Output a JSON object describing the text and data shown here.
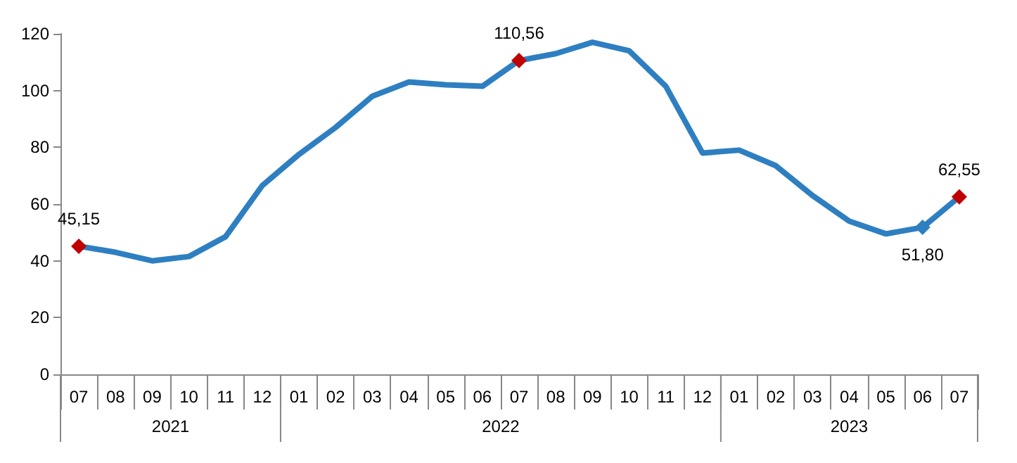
{
  "chart_data": {
    "type": "line",
    "categories": [
      "07",
      "08",
      "09",
      "10",
      "11",
      "12",
      "01",
      "02",
      "03",
      "04",
      "05",
      "06",
      "07",
      "08",
      "09",
      "10",
      "11",
      "12",
      "01",
      "02",
      "03",
      "04",
      "05",
      "06",
      "07"
    ],
    "annotations": [
      "2021",
      "2022",
      "2023"
    ],
    "series": [
      {
        "color": "#2e7fc1",
        "values": [
          45.15,
          43,
          40,
          41.5,
          48.5,
          66.5,
          77.5,
          87,
          98,
          103,
          102,
          101.5,
          110.56,
          113,
          117,
          114,
          101.5,
          78,
          79,
          73.5,
          63,
          54,
          49.5,
          51.8,
          62.55
        ],
        "value_labels": [
          "45,15",
          null,
          null,
          null,
          null,
          null,
          null,
          null,
          null,
          null,
          null,
          null,
          "110,56",
          null,
          null,
          null,
          null,
          null,
          null,
          null,
          null,
          null,
          null,
          "51,80",
          "62,55"
        ],
        "colors": [
          "#c00000",
          null,
          null,
          null,
          null,
          null,
          null,
          null,
          null,
          null,
          null,
          null,
          "#c00000",
          null,
          null,
          null,
          null,
          null,
          null,
          null,
          null,
          null,
          null,
          "#2e7fc1",
          "#c00000"
        ]
      }
    ],
    "ylim": [
      0,
      120
    ],
    "yticks": [
      0,
      20,
      40,
      60,
      80,
      100,
      120
    ],
    "grid": false,
    "line_style": "solid"
  }
}
